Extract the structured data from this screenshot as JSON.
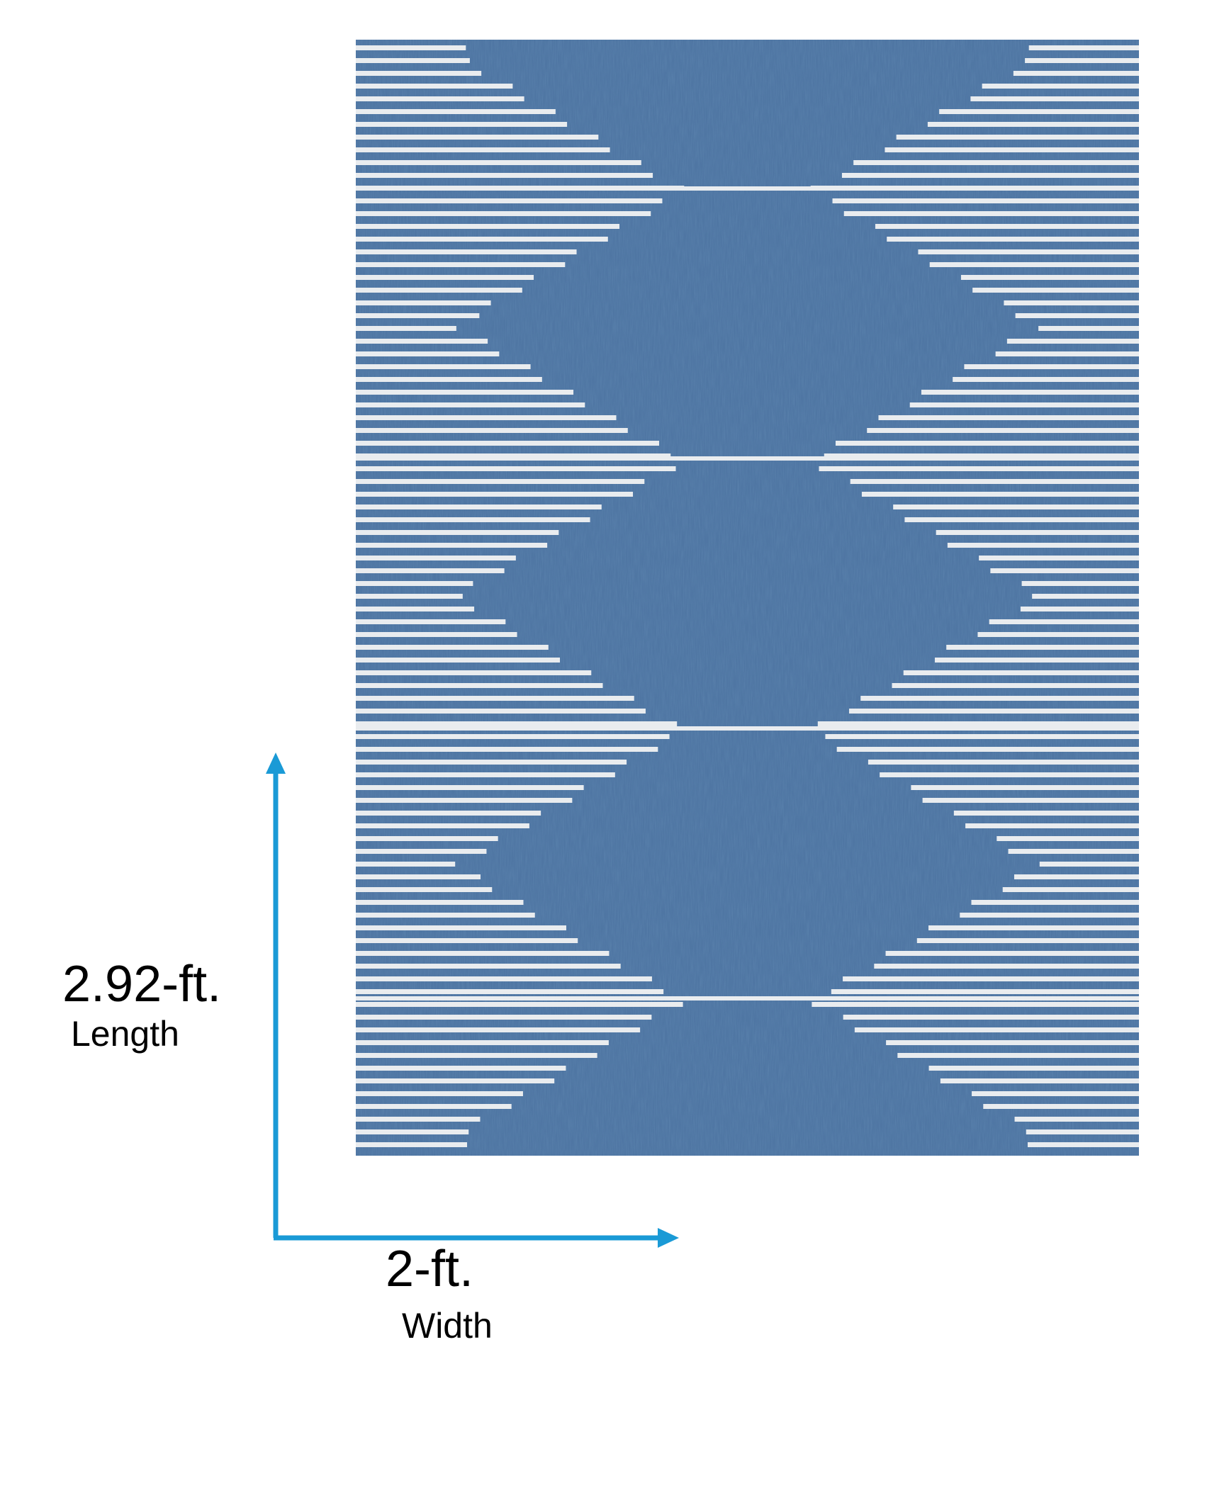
{
  "length": {
    "value": "2.92-ft.",
    "label": "Length"
  },
  "width": {
    "value": "2-ft.",
    "label": "Width"
  }
}
